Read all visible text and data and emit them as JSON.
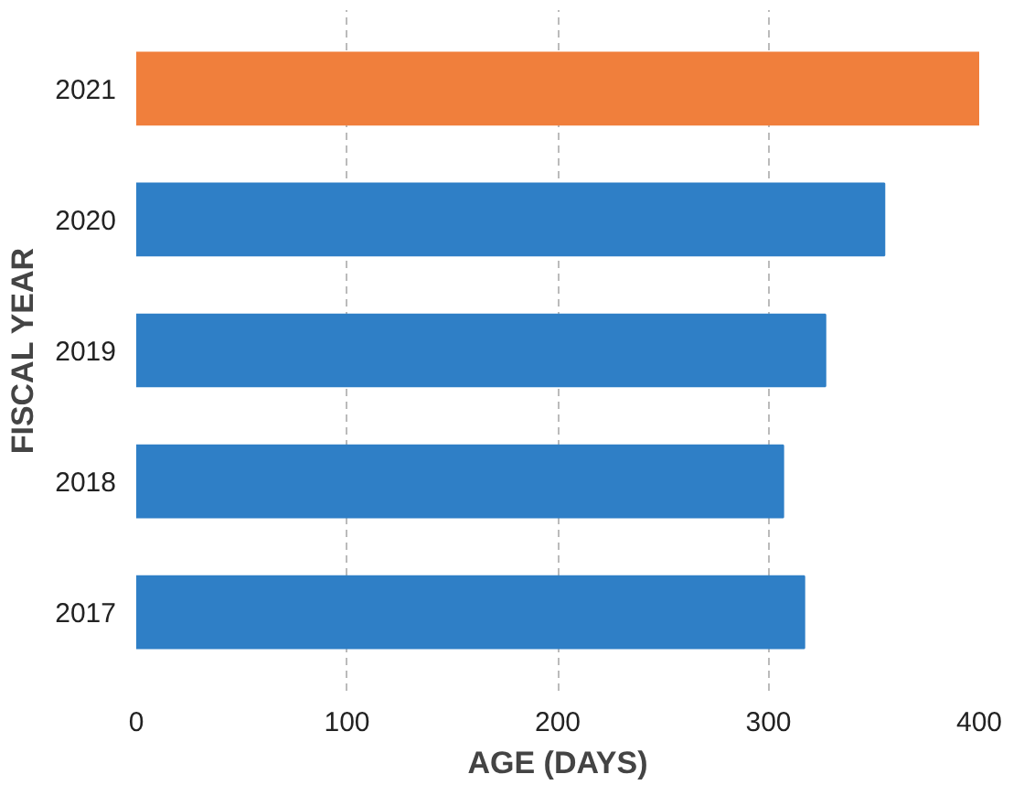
{
  "chart_data": {
    "type": "bar",
    "orientation": "horizontal",
    "xlabel": "AGE (DAYS)",
    "ylabel": "FISCAL YEAR",
    "categories": [
      "2021",
      "2020",
      "2019",
      "2018",
      "2017"
    ],
    "values": [
      400,
      355,
      327,
      307,
      317
    ],
    "colors": [
      "#f07f3c",
      "#2f7fc6",
      "#2f7fc6",
      "#2f7fc6",
      "#2f7fc6"
    ],
    "xlim": [
      0,
      400
    ],
    "xticks": [
      0,
      100,
      200,
      300,
      400
    ],
    "grid": "x"
  }
}
